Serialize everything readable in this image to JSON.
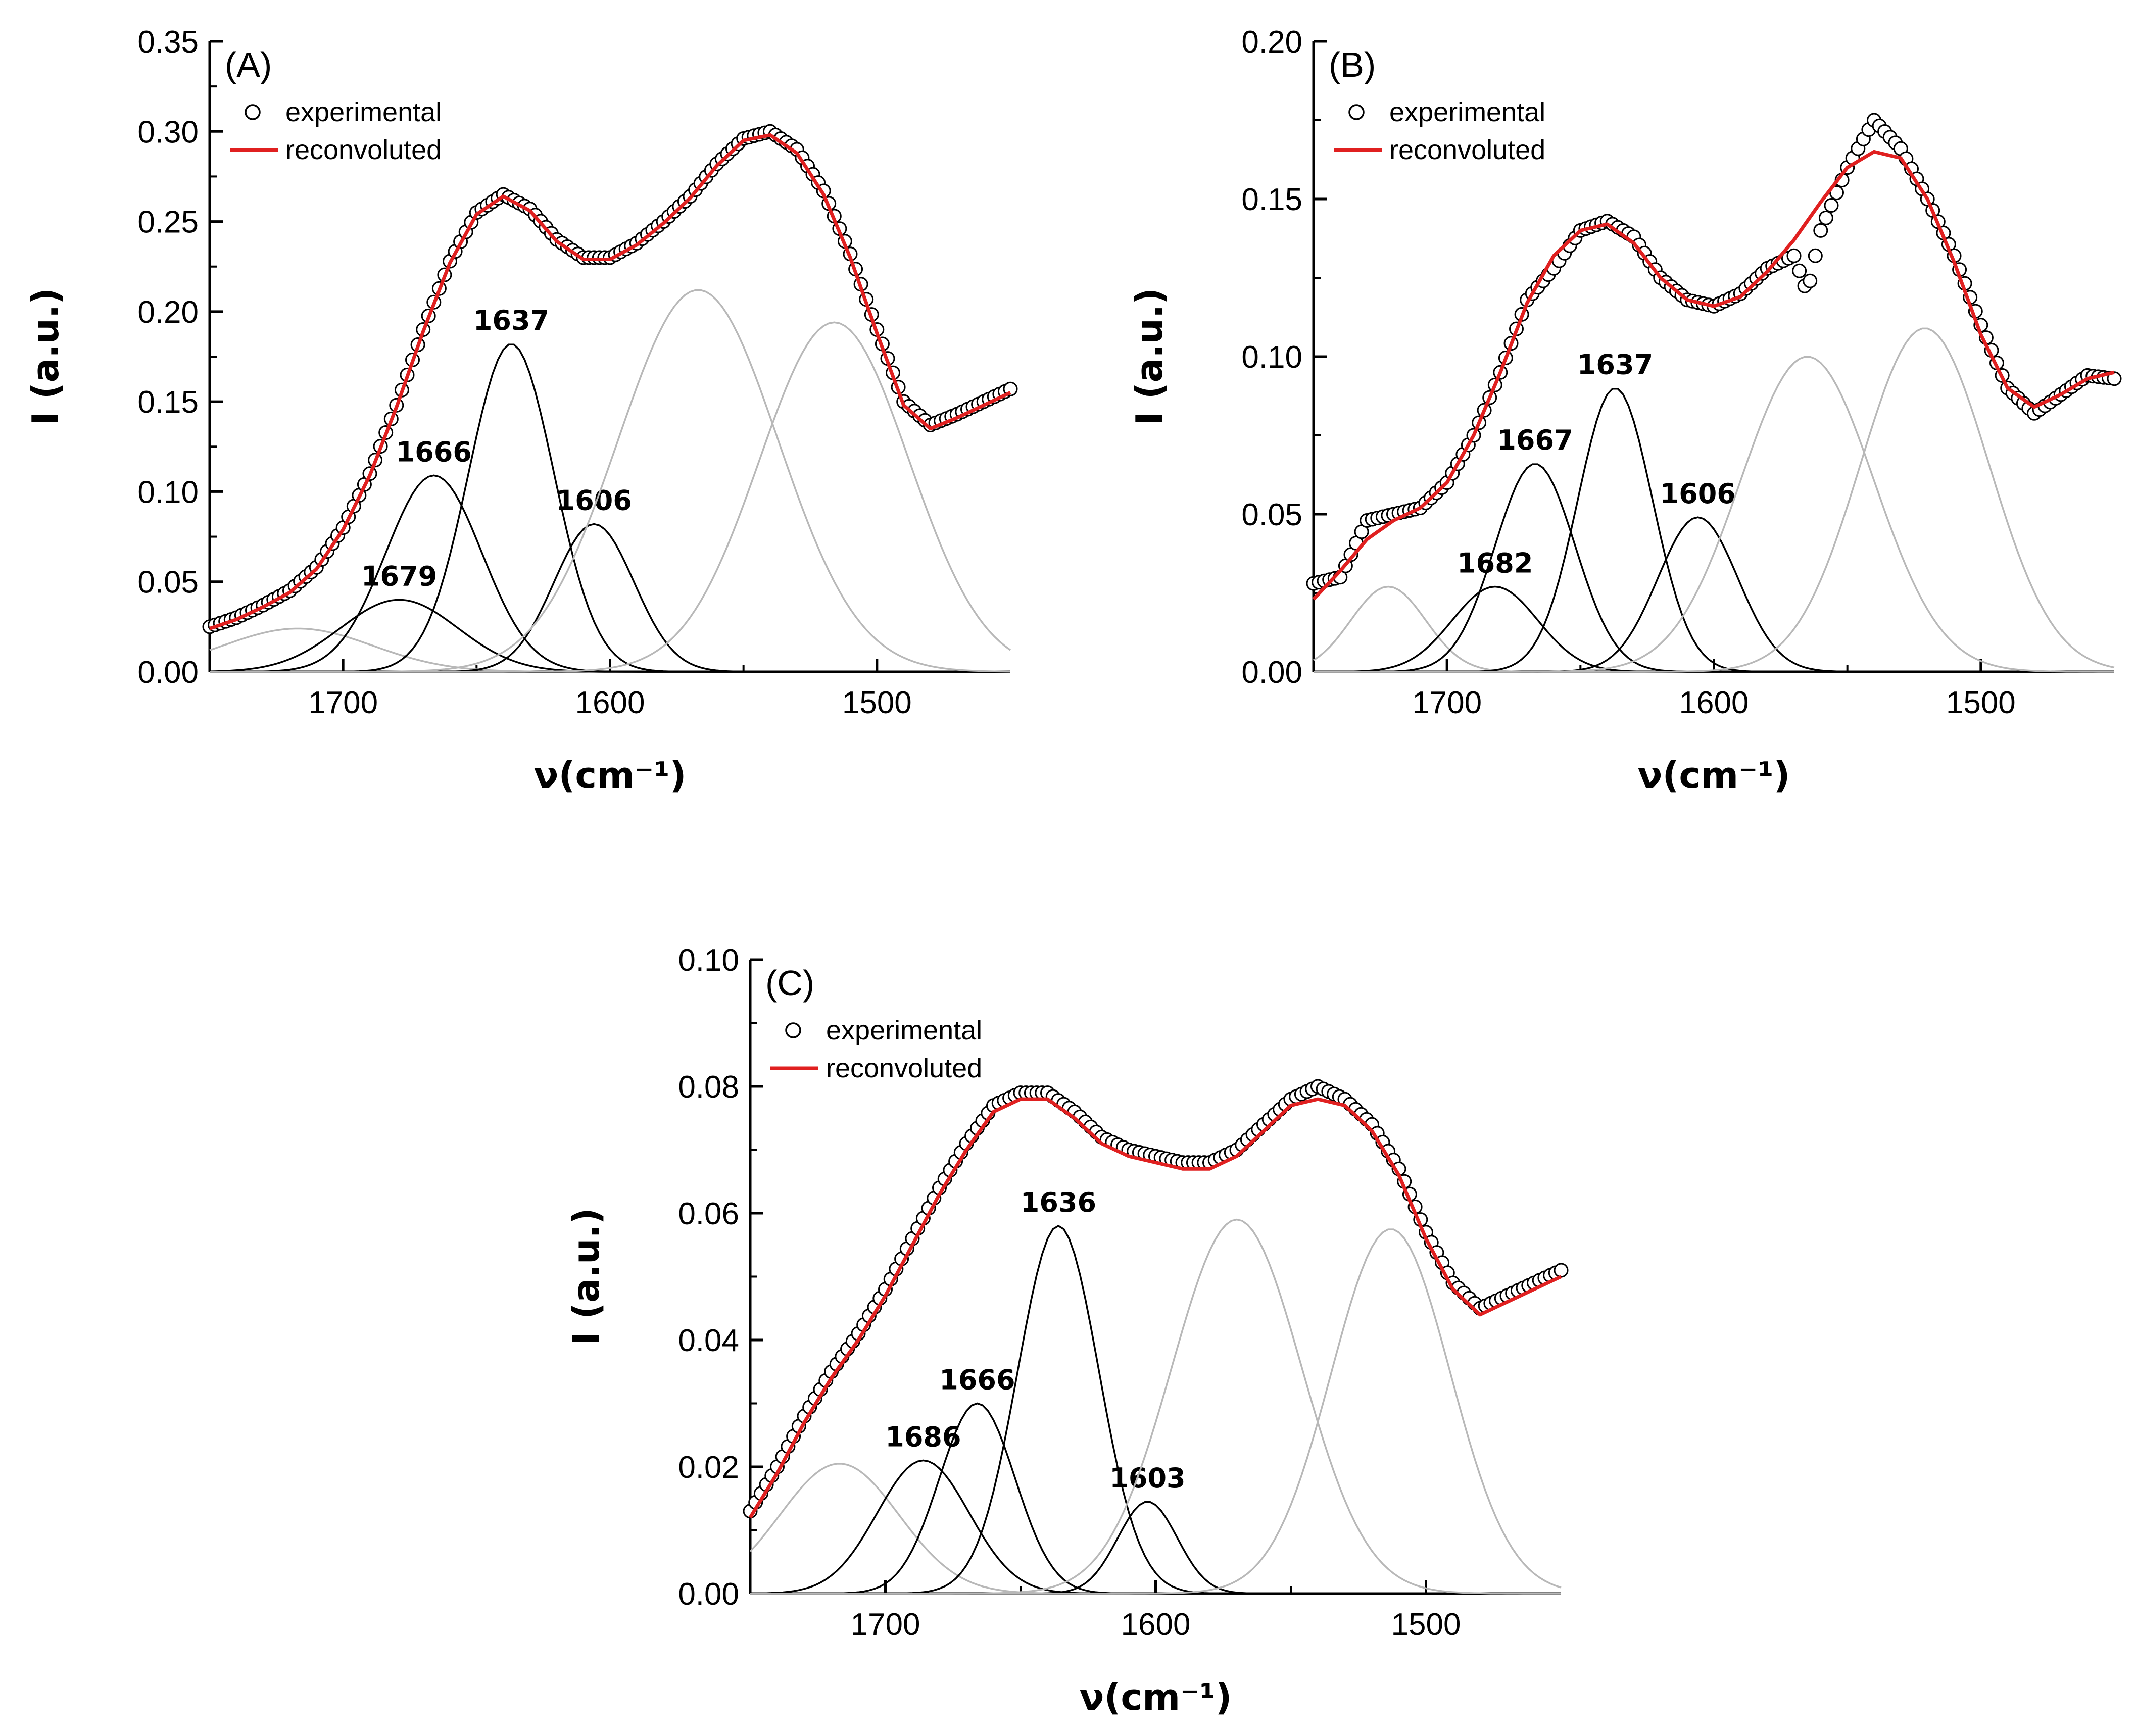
{
  "chart_data": [
    {
      "type": "line",
      "panel_label": "(A)",
      "xlabel": "ν(cm⁻¹)",
      "ylabel": "I (a.u.)",
      "xlim": [
        1750,
        1450
      ],
      "ylim": [
        0,
        0.35
      ],
      "x_ticks": [
        1700,
        1600,
        1500
      ],
      "y_ticks": [
        "0.00",
        "0.05",
        "0.10",
        "0.15",
        "0.20",
        "0.25",
        "0.30",
        "0.35"
      ],
      "legend": {
        "position": "top-left",
        "entries": [
          "experimental",
          "reconvoluted"
        ]
      },
      "series": [
        {
          "name": "experimental",
          "style": "circles",
          "x": [
            1750,
            1740,
            1730,
            1720,
            1710,
            1700,
            1690,
            1680,
            1670,
            1660,
            1650,
            1640,
            1630,
            1620,
            1610,
            1600,
            1590,
            1580,
            1570,
            1560,
            1550,
            1540,
            1530,
            1520,
            1510,
            1500,
            1490,
            1480,
            1470,
            1460,
            1450
          ],
          "values": [
            0.025,
            0.03,
            0.037,
            0.045,
            0.058,
            0.08,
            0.11,
            0.148,
            0.19,
            0.228,
            0.255,
            0.265,
            0.257,
            0.24,
            0.23,
            0.23,
            0.238,
            0.25,
            0.264,
            0.282,
            0.296,
            0.3,
            0.29,
            0.267,
            0.232,
            0.19,
            0.15,
            0.137,
            0.143,
            0.15,
            0.157
          ]
        },
        {
          "name": "reconvoluted",
          "style": "red-line",
          "x": [
            1750,
            1740,
            1730,
            1720,
            1710,
            1700,
            1690,
            1680,
            1670,
            1660,
            1650,
            1640,
            1630,
            1620,
            1610,
            1600,
            1590,
            1580,
            1570,
            1560,
            1550,
            1540,
            1530,
            1520,
            1510,
            1500,
            1490,
            1480,
            1470,
            1460,
            1450
          ],
          "values": [
            0.024,
            0.029,
            0.036,
            0.044,
            0.057,
            0.079,
            0.109,
            0.147,
            0.189,
            0.227,
            0.254,
            0.264,
            0.256,
            0.239,
            0.229,
            0.229,
            0.237,
            0.249,
            0.263,
            0.281,
            0.295,
            0.298,
            0.288,
            0.265,
            0.23,
            0.188,
            0.148,
            0.135,
            0.141,
            0.148,
            0.155
          ]
        }
      ],
      "components": [
        {
          "center": 1717,
          "amplitude": 0.024,
          "sigma": 28,
          "color": "gray",
          "label": ""
        },
        {
          "center": 1679,
          "amplitude": 0.04,
          "sigma": 22,
          "color": "black",
          "label": "1679"
        },
        {
          "center": 1666,
          "amplitude": 0.109,
          "sigma": 18,
          "color": "black",
          "label": "1666"
        },
        {
          "center": 1637,
          "amplitude": 0.182,
          "sigma": 16,
          "color": "black",
          "label": "1637"
        },
        {
          "center": 1606,
          "amplitude": 0.082,
          "sigma": 15,
          "color": "black",
          "label": "1606"
        },
        {
          "center": 1567,
          "amplitude": 0.212,
          "sigma": 30,
          "color": "gray",
          "label": ""
        },
        {
          "center": 1516,
          "amplitude": 0.194,
          "sigma": 28,
          "color": "gray",
          "label": ""
        }
      ]
    },
    {
      "type": "line",
      "panel_label": "(B)",
      "xlabel": "ν(cm⁻¹)",
      "ylabel": "I (a.u.)",
      "xlim": [
        1750,
        1450
      ],
      "ylim": [
        0,
        0.2
      ],
      "x_ticks": [
        1700,
        1600,
        1500
      ],
      "y_ticks": [
        "0.00",
        "0.05",
        "0.10",
        "0.15",
        "0.20"
      ],
      "legend": {
        "position": "top-left",
        "entries": [
          "experimental",
          "reconvoluted"
        ]
      },
      "series": [
        {
          "name": "experimental",
          "style": "circles",
          "x": [
            1750,
            1740,
            1730,
            1720,
            1710,
            1700,
            1690,
            1680,
            1670,
            1660,
            1650,
            1640,
            1630,
            1620,
            1610,
            1600,
            1590,
            1580,
            1570,
            1565,
            1560,
            1550,
            1540,
            1530,
            1520,
            1510,
            1500,
            1490,
            1480,
            1470,
            1460,
            1450
          ],
          "values": [
            0.028,
            0.03,
            0.048,
            0.05,
            0.052,
            0.06,
            0.075,
            0.095,
            0.118,
            0.128,
            0.14,
            0.143,
            0.138,
            0.125,
            0.118,
            0.116,
            0.12,
            0.128,
            0.132,
            0.12,
            0.14,
            0.16,
            0.175,
            0.166,
            0.15,
            0.132,
            0.11,
            0.09,
            0.082,
            0.088,
            0.094,
            0.093
          ]
        },
        {
          "name": "reconvoluted",
          "style": "red-line",
          "x": [
            1750,
            1740,
            1730,
            1720,
            1710,
            1700,
            1690,
            1680,
            1670,
            1660,
            1650,
            1640,
            1630,
            1620,
            1610,
            1600,
            1590,
            1580,
            1570,
            1560,
            1550,
            1540,
            1530,
            1520,
            1510,
            1500,
            1490,
            1480,
            1470,
            1460,
            1450
          ],
          "values": [
            0.023,
            0.032,
            0.042,
            0.048,
            0.052,
            0.06,
            0.075,
            0.095,
            0.117,
            0.132,
            0.14,
            0.142,
            0.136,
            0.125,
            0.118,
            0.116,
            0.119,
            0.127,
            0.137,
            0.149,
            0.16,
            0.165,
            0.163,
            0.15,
            0.13,
            0.107,
            0.09,
            0.084,
            0.088,
            0.093,
            0.095
          ]
        }
      ],
      "components": [
        {
          "center": 1722,
          "amplitude": 0.027,
          "sigma": 14,
          "color": "gray",
          "label": ""
        },
        {
          "center": 1682,
          "amplitude": 0.027,
          "sigma": 16,
          "color": "black",
          "label": "1682"
        },
        {
          "center": 1667,
          "amplitude": 0.066,
          "sigma": 15,
          "color": "black",
          "label": "1667"
        },
        {
          "center": 1637,
          "amplitude": 0.09,
          "sigma": 14,
          "color": "black",
          "label": "1637"
        },
        {
          "center": 1606,
          "amplitude": 0.049,
          "sigma": 15,
          "color": "black",
          "label": "1606"
        },
        {
          "center": 1565,
          "amplitude": 0.1,
          "sigma": 25,
          "color": "gray",
          "label": ""
        },
        {
          "center": 1521,
          "amplitude": 0.109,
          "sigma": 24,
          "color": "gray",
          "label": ""
        }
      ]
    },
    {
      "type": "line",
      "panel_label": "(C)",
      "xlabel": "ν(cm⁻¹)",
      "ylabel": "I (a.u.)",
      "xlim": [
        1750,
        1450
      ],
      "ylim": [
        0,
        0.1
      ],
      "x_ticks": [
        1700,
        1600,
        1500
      ],
      "y_ticks": [
        "0.00",
        "0.02",
        "0.04",
        "0.06",
        "0.08",
        "0.10"
      ],
      "legend": {
        "position": "top-left",
        "entries": [
          "experimental",
          "reconvoluted"
        ]
      },
      "series": [
        {
          "name": "experimental",
          "style": "circles",
          "x": [
            1750,
            1740,
            1730,
            1720,
            1710,
            1700,
            1690,
            1680,
            1670,
            1660,
            1650,
            1640,
            1630,
            1620,
            1610,
            1600,
            1590,
            1580,
            1570,
            1560,
            1550,
            1540,
            1530,
            1520,
            1510,
            1500,
            1490,
            1480,
            1470,
            1460,
            1450
          ],
          "values": [
            0.013,
            0.02,
            0.028,
            0.035,
            0.041,
            0.048,
            0.056,
            0.064,
            0.071,
            0.077,
            0.079,
            0.079,
            0.076,
            0.072,
            0.07,
            0.069,
            0.068,
            0.068,
            0.07,
            0.074,
            0.078,
            0.08,
            0.078,
            0.074,
            0.067,
            0.057,
            0.049,
            0.045,
            0.047,
            0.049,
            0.051
          ]
        },
        {
          "name": "reconvoluted",
          "style": "red-line",
          "x": [
            1750,
            1740,
            1730,
            1720,
            1710,
            1700,
            1690,
            1680,
            1670,
            1660,
            1650,
            1640,
            1630,
            1620,
            1610,
            1600,
            1590,
            1580,
            1570,
            1560,
            1550,
            1540,
            1530,
            1520,
            1510,
            1500,
            1490,
            1480,
            1470,
            1460,
            1450
          ],
          "values": [
            0.012,
            0.019,
            0.027,
            0.034,
            0.04,
            0.047,
            0.055,
            0.063,
            0.07,
            0.076,
            0.078,
            0.078,
            0.075,
            0.071,
            0.069,
            0.068,
            0.067,
            0.067,
            0.069,
            0.073,
            0.077,
            0.078,
            0.077,
            0.073,
            0.066,
            0.056,
            0.048,
            0.044,
            0.046,
            0.048,
            0.05
          ]
        }
      ],
      "components": [
        {
          "center": 1717,
          "amplitude": 0.0205,
          "sigma": 22,
          "color": "gray",
          "label": ""
        },
        {
          "center": 1686,
          "amplitude": 0.021,
          "sigma": 17,
          "color": "black",
          "label": "1686"
        },
        {
          "center": 1666,
          "amplitude": 0.03,
          "sigma": 14,
          "color": "black",
          "label": "1666"
        },
        {
          "center": 1636,
          "amplitude": 0.058,
          "sigma": 15,
          "color": "black",
          "label": "1636"
        },
        {
          "center": 1603,
          "amplitude": 0.0145,
          "sigma": 11,
          "color": "black",
          "label": "1603"
        },
        {
          "center": 1570,
          "amplitude": 0.059,
          "sigma": 24,
          "color": "gray",
          "label": ""
        },
        {
          "center": 1513,
          "amplitude": 0.0575,
          "sigma": 22,
          "color": "gray",
          "label": ""
        }
      ]
    }
  ]
}
